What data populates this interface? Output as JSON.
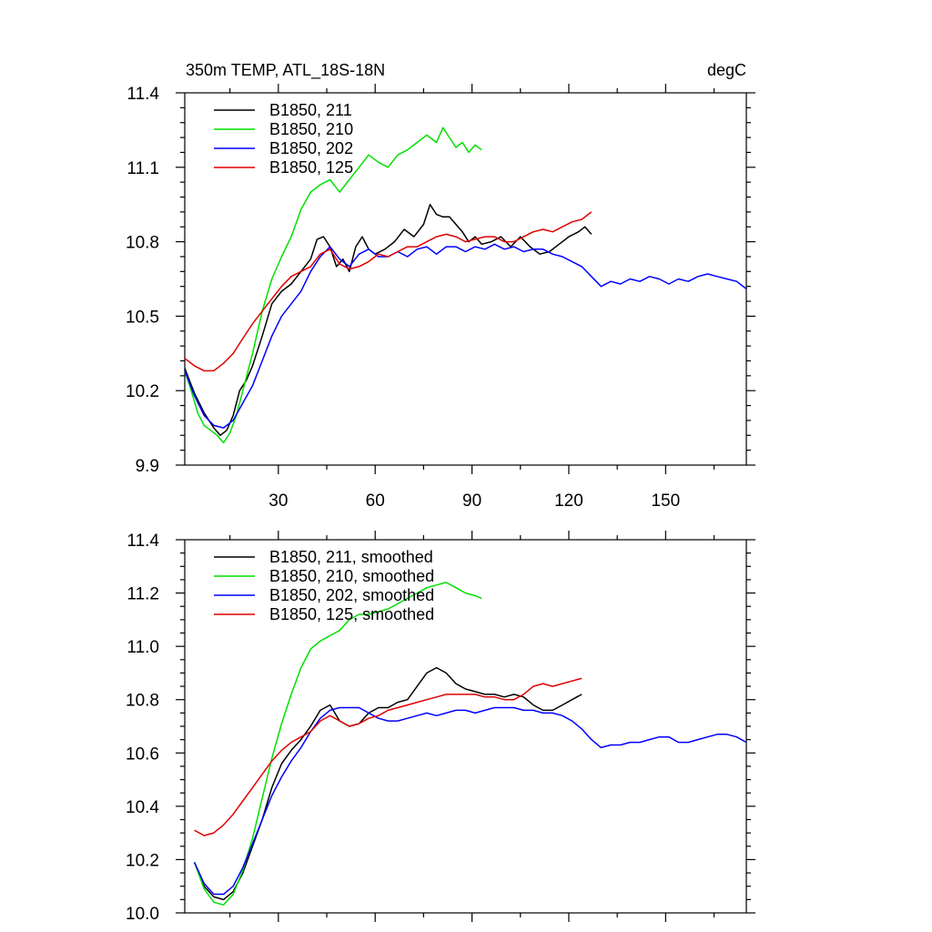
{
  "chart_data": [
    {
      "type": "line",
      "title_left": "350m TEMP, ATL_18S-18N",
      "title_right": "degC",
      "xlim": [
        1,
        175
      ],
      "ylim": [
        9.9,
        11.4
      ],
      "xticks": [
        30,
        60,
        90,
        120,
        150
      ],
      "yticks": [
        9.9,
        10.2,
        10.5,
        10.8,
        11.1,
        11.4
      ],
      "ytick_labels": [
        "9.9",
        "10.2",
        "10.5",
        "10.8",
        "11.1",
        "11.4"
      ],
      "legend_position": "top-left",
      "series": [
        {
          "name": "B1850, 211",
          "color": "#000000",
          "x": [
            1,
            4,
            7,
            10,
            12,
            14,
            16,
            18,
            20,
            22,
            25,
            28,
            31,
            34,
            37,
            40,
            42,
            44,
            46,
            48,
            50,
            52,
            54,
            56,
            58,
            60,
            63,
            66,
            69,
            72,
            75,
            77,
            79,
            81,
            83,
            85,
            87,
            89,
            91,
            93,
            96,
            99,
            102,
            105,
            108,
            111,
            114,
            117,
            120,
            123,
            125,
            127
          ],
          "y": [
            10.29,
            10.19,
            10.11,
            10.05,
            10.02,
            10.04,
            10.1,
            10.2,
            10.24,
            10.3,
            10.42,
            10.55,
            10.6,
            10.63,
            10.68,
            10.73,
            10.81,
            10.82,
            10.78,
            10.7,
            10.73,
            10.68,
            10.78,
            10.82,
            10.77,
            10.75,
            10.77,
            10.8,
            10.85,
            10.82,
            10.87,
            10.95,
            10.91,
            10.9,
            10.9,
            10.87,
            10.84,
            10.8,
            10.82,
            10.79,
            10.8,
            10.82,
            10.78,
            10.82,
            10.78,
            10.75,
            10.76,
            10.79,
            10.82,
            10.84,
            10.86,
            10.83
          ]
        },
        {
          "name": "B1850, 210",
          "color": "#00e000",
          "x": [
            1,
            3,
            5,
            7,
            9,
            11,
            13,
            15,
            17,
            19,
            22,
            25,
            28,
            31,
            34,
            37,
            40,
            43,
            46,
            49,
            52,
            55,
            58,
            61,
            64,
            67,
            70,
            73,
            76,
            79,
            81,
            83,
            85,
            87,
            89,
            91,
            93
          ],
          "y": [
            10.28,
            10.2,
            10.11,
            10.06,
            10.04,
            10.02,
            9.99,
            10.03,
            10.1,
            10.2,
            10.35,
            10.52,
            10.65,
            10.74,
            10.82,
            10.93,
            11.0,
            11.03,
            11.05,
            11.0,
            11.05,
            11.1,
            11.15,
            11.12,
            11.1,
            11.15,
            11.17,
            11.2,
            11.23,
            11.2,
            11.26,
            11.22,
            11.18,
            11.2,
            11.16,
            11.19,
            11.17
          ]
        },
        {
          "name": "B1850, 202",
          "color": "#0000ff",
          "x": [
            1,
            4,
            7,
            10,
            13,
            16,
            19,
            22,
            25,
            28,
            31,
            34,
            37,
            40,
            43,
            46,
            49,
            52,
            55,
            58,
            61,
            64,
            67,
            70,
            73,
            76,
            79,
            82,
            85,
            88,
            91,
            94,
            97,
            100,
            103,
            106,
            109,
            112,
            115,
            118,
            121,
            124,
            127,
            130,
            133,
            136,
            139,
            142,
            145,
            148,
            151,
            154,
            157,
            160,
            163,
            166,
            169,
            172,
            175
          ],
          "y": [
            10.28,
            10.18,
            10.1,
            10.06,
            10.05,
            10.08,
            10.15,
            10.22,
            10.32,
            10.42,
            10.5,
            10.55,
            10.6,
            10.68,
            10.74,
            10.78,
            10.73,
            10.7,
            10.75,
            10.77,
            10.74,
            10.74,
            10.76,
            10.74,
            10.77,
            10.78,
            10.75,
            10.78,
            10.78,
            10.76,
            10.78,
            10.77,
            10.79,
            10.77,
            10.78,
            10.76,
            10.77,
            10.77,
            10.75,
            10.74,
            10.72,
            10.7,
            10.66,
            10.62,
            10.64,
            10.63,
            10.65,
            10.64,
            10.66,
            10.65,
            10.63,
            10.65,
            10.64,
            10.66,
            10.67,
            10.66,
            10.65,
            10.64,
            10.61
          ]
        },
        {
          "name": "B1850, 125",
          "color": "#e00000",
          "x": [
            1,
            4,
            7,
            10,
            13,
            16,
            19,
            22,
            25,
            28,
            31,
            34,
            37,
            40,
            43,
            46,
            49,
            52,
            55,
            58,
            61,
            64,
            67,
            70,
            73,
            76,
            79,
            82,
            85,
            88,
            91,
            94,
            97,
            100,
            103,
            106,
            109,
            112,
            115,
            118,
            121,
            124,
            127
          ],
          "y": [
            10.33,
            10.3,
            10.28,
            10.28,
            10.31,
            10.35,
            10.41,
            10.47,
            10.52,
            10.57,
            10.62,
            10.66,
            10.68,
            10.7,
            10.75,
            10.77,
            10.71,
            10.69,
            10.7,
            10.72,
            10.75,
            10.74,
            10.76,
            10.78,
            10.78,
            10.8,
            10.82,
            10.83,
            10.82,
            10.8,
            10.81,
            10.82,
            10.82,
            10.8,
            10.8,
            10.82,
            10.84,
            10.85,
            10.84,
            10.86,
            10.88,
            10.89,
            10.92
          ]
        }
      ]
    },
    {
      "type": "line",
      "xlim": [
        1,
        175
      ],
      "ylim": [
        10.0,
        11.4
      ],
      "xticks": [
        30,
        60,
        90,
        120,
        150
      ],
      "yticks": [
        10.0,
        10.2,
        10.4,
        10.6,
        10.8,
        11.0,
        11.2,
        11.4
      ],
      "ytick_labels": [
        "10.0",
        "10.2",
        "10.4",
        "10.6",
        "10.8",
        "11.0",
        "11.2",
        "11.4"
      ],
      "legend_position": "top-left",
      "series": [
        {
          "name": "B1850, 211, smoothed",
          "color": "#000000",
          "x": [
            4,
            7,
            10,
            13,
            16,
            19,
            22,
            25,
            28,
            31,
            34,
            37,
            40,
            43,
            46,
            49,
            52,
            55,
            58,
            61,
            64,
            67,
            70,
            73,
            76,
            79,
            82,
            85,
            88,
            91,
            94,
            97,
            100,
            103,
            106,
            109,
            112,
            115,
            118,
            121,
            124
          ],
          "y": [
            10.19,
            10.1,
            10.06,
            10.05,
            10.08,
            10.15,
            10.25,
            10.35,
            10.47,
            10.56,
            10.61,
            10.65,
            10.7,
            10.76,
            10.78,
            10.72,
            10.7,
            10.71,
            10.75,
            10.77,
            10.77,
            10.79,
            10.8,
            10.85,
            10.9,
            10.92,
            10.9,
            10.86,
            10.84,
            10.83,
            10.82,
            10.82,
            10.81,
            10.82,
            10.81,
            10.78,
            10.76,
            10.76,
            10.78,
            10.8,
            10.82
          ]
        },
        {
          "name": "B1850, 210, smoothed",
          "color": "#00e000",
          "x": [
            4,
            7,
            10,
            13,
            16,
            19,
            22,
            25,
            28,
            31,
            34,
            37,
            40,
            43,
            46,
            49,
            52,
            55,
            58,
            61,
            64,
            67,
            70,
            73,
            76,
            79,
            82,
            85,
            88,
            91,
            93
          ],
          "y": [
            10.19,
            10.09,
            10.04,
            10.03,
            10.07,
            10.16,
            10.28,
            10.43,
            10.58,
            10.71,
            10.82,
            10.92,
            10.99,
            11.02,
            11.04,
            11.06,
            11.1,
            11.12,
            11.12,
            11.13,
            11.14,
            11.16,
            11.18,
            11.2,
            11.22,
            11.23,
            11.24,
            11.22,
            11.2,
            11.19,
            11.18
          ]
        },
        {
          "name": "B1850, 202, smoothed",
          "color": "#0000ff",
          "x": [
            4,
            7,
            10,
            13,
            16,
            19,
            22,
            25,
            28,
            31,
            34,
            37,
            40,
            43,
            46,
            49,
            52,
            55,
            58,
            61,
            64,
            67,
            70,
            73,
            76,
            79,
            82,
            85,
            88,
            91,
            94,
            97,
            100,
            103,
            106,
            109,
            112,
            115,
            118,
            121,
            124,
            127,
            130,
            133,
            136,
            139,
            142,
            145,
            148,
            151,
            154,
            157,
            160,
            163,
            166,
            169,
            172,
            175
          ],
          "y": [
            10.19,
            10.11,
            10.07,
            10.07,
            10.1,
            10.17,
            10.26,
            10.35,
            10.44,
            10.51,
            10.57,
            10.62,
            10.68,
            10.73,
            10.76,
            10.77,
            10.77,
            10.77,
            10.75,
            10.73,
            10.72,
            10.72,
            10.73,
            10.74,
            10.75,
            10.74,
            10.75,
            10.76,
            10.76,
            10.75,
            10.76,
            10.77,
            10.77,
            10.77,
            10.76,
            10.76,
            10.75,
            10.75,
            10.74,
            10.72,
            10.69,
            10.65,
            10.62,
            10.63,
            10.63,
            10.64,
            10.64,
            10.65,
            10.66,
            10.66,
            10.64,
            10.64,
            10.65,
            10.66,
            10.67,
            10.67,
            10.66,
            10.64
          ]
        },
        {
          "name": "B1850, 125, smoothed",
          "color": "#e00000",
          "x": [
            4,
            7,
            10,
            13,
            16,
            19,
            22,
            25,
            28,
            31,
            34,
            37,
            40,
            43,
            46,
            49,
            52,
            55,
            58,
            61,
            64,
            67,
            70,
            73,
            76,
            79,
            82,
            85,
            88,
            91,
            94,
            97,
            100,
            103,
            106,
            109,
            112,
            115,
            118,
            121,
            124
          ],
          "y": [
            10.31,
            10.29,
            10.3,
            10.33,
            10.37,
            10.42,
            10.47,
            10.52,
            10.57,
            10.61,
            10.64,
            10.66,
            10.68,
            10.72,
            10.74,
            10.72,
            10.7,
            10.71,
            10.73,
            10.74,
            10.76,
            10.77,
            10.78,
            10.79,
            10.8,
            10.81,
            10.82,
            10.82,
            10.82,
            10.82,
            10.81,
            10.81,
            10.8,
            10.8,
            10.82,
            10.85,
            10.86,
            10.85,
            10.86,
            10.87,
            10.88
          ]
        }
      ]
    }
  ]
}
